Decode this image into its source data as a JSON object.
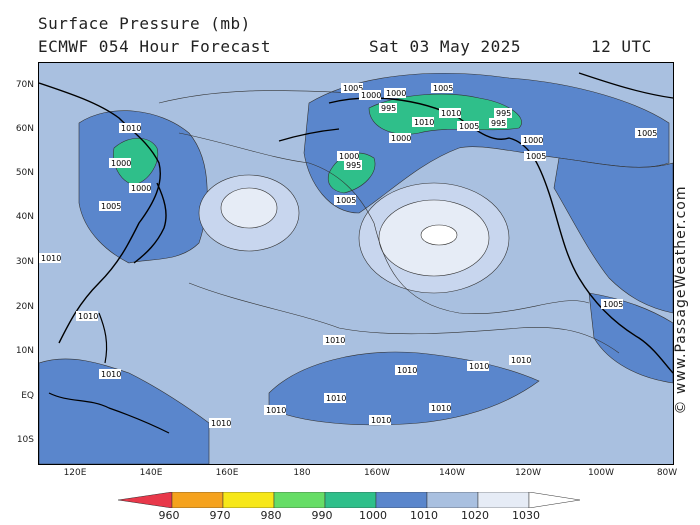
{
  "header": {
    "title": "Surface Pressure (mb)",
    "model_line": "ECMWF 054 Hour Forecast",
    "date": "Sat 03 May 2025",
    "time": "12 UTC"
  },
  "axes": {
    "lat_labels": [
      "70N",
      "60N",
      "50N",
      "40N",
      "30N",
      "20N",
      "10N",
      "EQ",
      "10S"
    ],
    "lon_labels": [
      "120E",
      "140E",
      "160E",
      "180",
      "160W",
      "140W",
      "120W",
      "100W",
      "80W"
    ]
  },
  "isobar_labels": [
    "1005",
    "1000",
    "995",
    "1000",
    "1005",
    "1005",
    "1010",
    "1010",
    "1010",
    "1005",
    "1000",
    "995",
    "1000",
    "1005",
    "995",
    "1000",
    "1010",
    "1005",
    "1000",
    "995",
    "1000",
    "1005",
    "1005",
    "1010",
    "1010",
    "1010",
    "1010",
    "1010",
    "1010",
    "1010",
    "1010",
    "1010",
    "1010",
    "1010"
  ],
  "legend": {
    "ticks": [
      "960",
      "970",
      "980",
      "990",
      "1000",
      "1010",
      "1020",
      "1030"
    ],
    "colors": [
      "#e8384a",
      "#f5a21e",
      "#f7e718",
      "#66dd66",
      "#2fbf8a",
      "#5a86cc",
      "#a9c0e0",
      "#e6ecf6"
    ]
  },
  "watermark": "© www.PassageWeather.com",
  "colors": {
    "shade_995": "#2fbf8a",
    "shade_1005": "#5a86cc",
    "shade_1010": "#a9c0e0",
    "shade_1020": "#c8d6ee",
    "shade_1030": "#e6ecf6"
  }
}
